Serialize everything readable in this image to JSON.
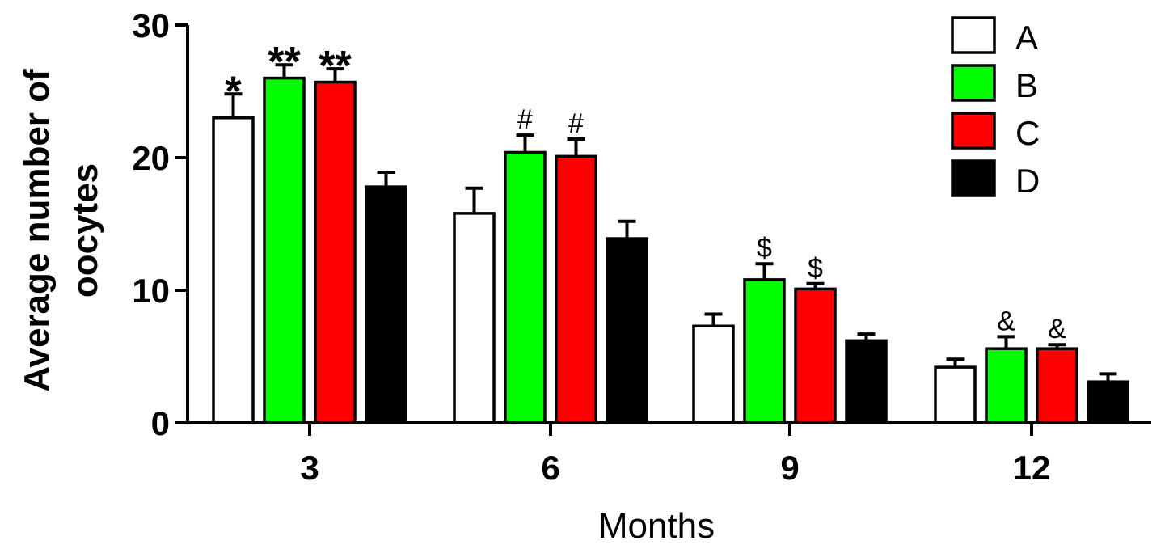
{
  "chart_data": {
    "type": "bar",
    "title": "",
    "xlabel": "Months",
    "ylabel_lines": [
      "Average number of",
      "oocytes"
    ],
    "ylim": [
      0,
      30
    ],
    "yticks": [
      0,
      10,
      20,
      30
    ],
    "categories": [
      "3",
      "6",
      "9",
      "12"
    ],
    "legend_position": "top-right",
    "grid": false,
    "series": [
      {
        "name": "A",
        "color": "#ffffff",
        "values": [
          23.0,
          15.8,
          7.3,
          4.2
        ],
        "errors": [
          1.8,
          1.9,
          0.9,
          0.6
        ]
      },
      {
        "name": "B",
        "color": "#00ff00",
        "values": [
          26.0,
          20.4,
          10.8,
          5.6
        ],
        "errors": [
          1.0,
          1.3,
          1.2,
          0.9
        ]
      },
      {
        "name": "C",
        "color": "#ff0000",
        "values": [
          25.7,
          20.1,
          10.1,
          5.6
        ],
        "errors": [
          1.0,
          1.3,
          0.4,
          0.3
        ]
      },
      {
        "name": "D",
        "color": "#000000",
        "values": [
          17.8,
          13.9,
          6.2,
          3.1
        ],
        "errors": [
          1.1,
          1.3,
          0.5,
          0.6
        ]
      }
    ],
    "annotations": [
      {
        "series": 0,
        "category": 0,
        "text": "*"
      },
      {
        "series": 1,
        "category": 0,
        "text": "**"
      },
      {
        "series": 2,
        "category": 0,
        "text": "**"
      },
      {
        "series": 1,
        "category": 1,
        "text": "#"
      },
      {
        "series": 2,
        "category": 1,
        "text": "#"
      },
      {
        "series": 1,
        "category": 2,
        "text": "$"
      },
      {
        "series": 2,
        "category": 2,
        "text": "$"
      },
      {
        "series": 1,
        "category": 3,
        "text": "&"
      },
      {
        "series": 2,
        "category": 3,
        "text": "&"
      }
    ]
  }
}
